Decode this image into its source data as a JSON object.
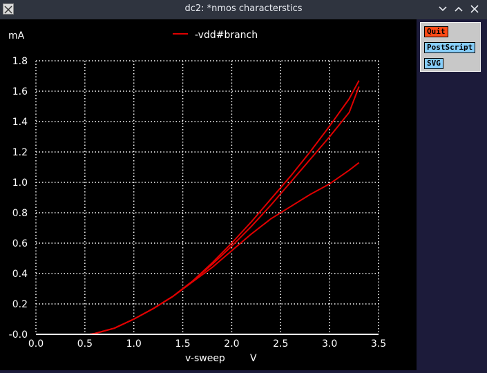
{
  "window": {
    "title": "dc2: *nmos characterstics"
  },
  "panel": {
    "quit": "Quit",
    "postscript": "PostScript",
    "svg": "SVG"
  },
  "chart_data": {
    "type": "line",
    "ylabel": "mA",
    "xlabel": "v-sweep",
    "xunit": "V",
    "legend": [
      "-vdd#branch"
    ],
    "legend_position": "top-center",
    "grid": true,
    "xlim": [
      0,
      3.5
    ],
    "ylim": [
      0,
      1.8
    ],
    "x_ticks": [
      "0.0",
      "0.5",
      "1.0",
      "1.5",
      "2.0",
      "2.5",
      "3.0",
      "3.5"
    ],
    "y_ticks": [
      "-0.0",
      "0.2",
      "0.4",
      "0.6",
      "0.8",
      "1.0",
      "1.2",
      "1.4",
      "1.6",
      "1.8"
    ],
    "colors": {
      "series": "#e00000",
      "axis": "#ffffff",
      "grid": "#ffffff",
      "background": "#000000"
    },
    "series": [
      {
        "name": "-vdd#branch",
        "x": [
          0,
          0.3,
          0.55,
          0.6,
          0.8,
          1.0,
          1.2,
          1.4,
          1.6,
          1.8,
          2.0,
          2.2,
          2.4,
          2.6,
          2.8,
          3.0,
          3.2,
          3.3
        ],
        "y": [
          0,
          0,
          0,
          0.005,
          0.04,
          0.1,
          0.17,
          0.25,
          0.345,
          0.44,
          0.55,
          0.66,
          0.76,
          0.84,
          0.92,
          0.99,
          1.08,
          1.13
        ]
      },
      {
        "name": "-vdd#branch",
        "x": [
          0,
          0.3,
          0.55,
          0.6,
          0.8,
          1.0,
          1.2,
          1.4,
          1.6,
          1.8,
          2.0,
          2.2,
          2.4,
          2.6,
          2.8,
          3.0,
          3.2,
          3.3
        ],
        "y": [
          0,
          0,
          0,
          0.005,
          0.04,
          0.1,
          0.17,
          0.25,
          0.35,
          0.46,
          0.58,
          0.71,
          0.85,
          1.0,
          1.15,
          1.3,
          1.46,
          1.63
        ]
      },
      {
        "name": "-vdd#branch",
        "x": [
          0,
          0.3,
          0.55,
          0.6,
          0.8,
          1.0,
          1.2,
          1.4,
          1.6,
          1.8,
          2.0,
          2.2,
          2.4,
          2.6,
          2.8,
          3.0,
          3.2,
          3.3
        ],
        "y": [
          0,
          0,
          0,
          0.005,
          0.04,
          0.1,
          0.17,
          0.25,
          0.35,
          0.47,
          0.6,
          0.74,
          0.89,
          1.04,
          1.2,
          1.37,
          1.55,
          1.67
        ]
      },
      {
        "name": "-vdd#branch",
        "x": [
          0,
          3.3
        ],
        "y": [
          0,
          0
        ]
      }
    ]
  }
}
